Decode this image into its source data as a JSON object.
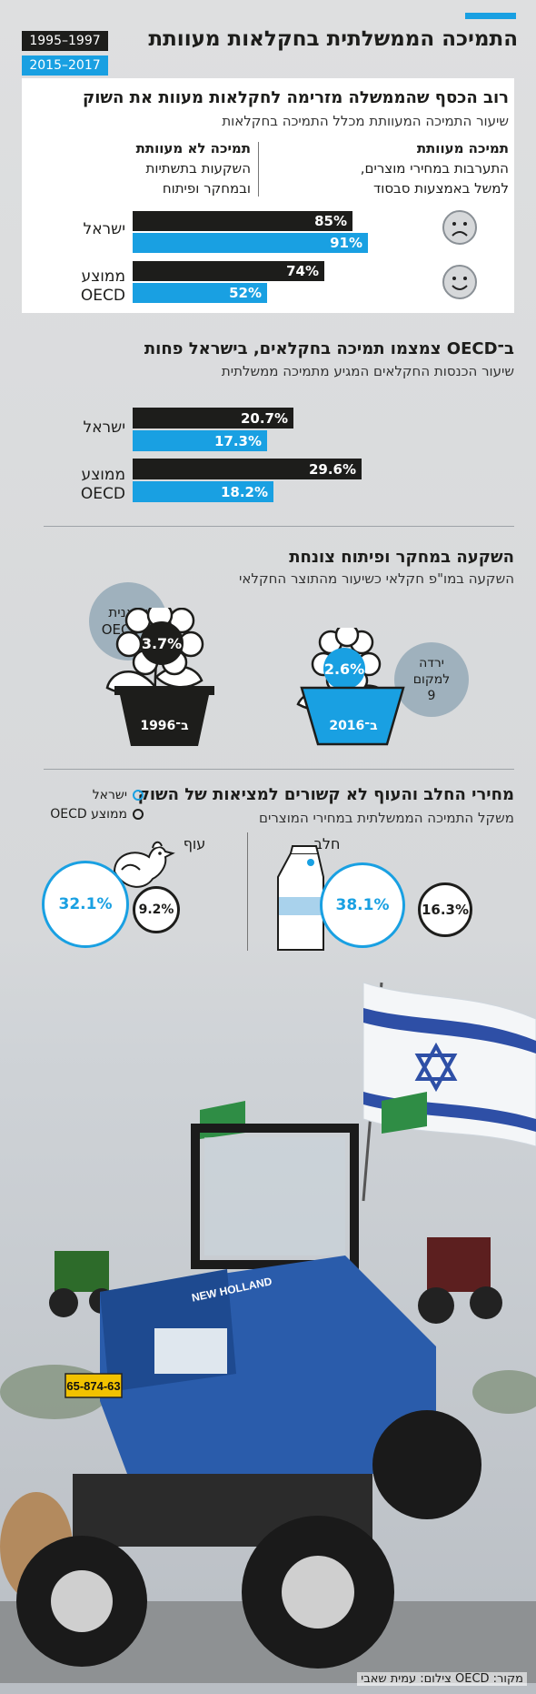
{
  "header": {
    "title": "התמיכה הממשלתית בחקלאות מעוותת",
    "period_a": "1997–1995",
    "period_b": "2017–2015"
  },
  "section1": {
    "title": "רוב הכסף שהממשלה מזרימה לחקלאות מעוות את השוק",
    "subtitle": "שיעור התמיכה המעוותת מכלל התמיכה בחקלאות",
    "def_distorting_title": "תמיכה מעוותת",
    "def_distorting_text1": "התערבות במחירי מוצרים,",
    "def_distorting_text2": "למשל באמצעות סבסוד",
    "def_nondistorting_title": "תמיכה לא מעוותת",
    "def_nondistorting_text1": "השקעות בתשתיות",
    "def_nondistorting_text2": "ובמחקר ופיתוח"
  },
  "section2": {
    "title": "ב־OECD צמצמו תמיכה בחקלאים, בישראל פחות",
    "subtitle": "שיעור הכנסות החקלאים המגיע מתמיכה ממשלתית"
  },
  "section3": {
    "title": "השקעה במחקר ופיתוח צונחת",
    "subtitle": "השקעה במו\"פ חקלאי כשיעור מהתוצר החקלאי",
    "pot1_label": "ב־1996",
    "pot1_value": "3.7%",
    "pot1_bubble_l1": "שיאנית",
    "pot1_bubble_l2": "ה־OECD",
    "pot2_label": "ב־2016",
    "pot2_value": "2.6%",
    "pot2_bubble_l1": "ירדה",
    "pot2_bubble_l2": "למקום",
    "pot2_bubble_l3": "9"
  },
  "section4": {
    "title": "מחירי החלב והעוף לא קשורים למציאות של השוק",
    "subtitle": "משקל התמיכה הממשלתית במחירי המוצרים",
    "legend_israel": "ישראל",
    "legend_oecd": "ממוצע OECD",
    "milk_label": "חלב",
    "milk_israel": "38.1%",
    "milk_oecd": "16.3%",
    "chicken_label": "עוף",
    "chicken_israel": "32.1%",
    "chicken_oecd": "9.2%"
  },
  "photo": {
    "plate": "65-874-63",
    "brand": "NEW HOLLAND"
  },
  "footer": {
    "source": "מקור: OECD  צילום: עמית שאבי"
  },
  "colors": {
    "israel_blue": "#19a0e2",
    "oecd_dark": "#1d1d1b",
    "bubble_gray": "#9fb1bd"
  },
  "chart_data": [
    {
      "type": "bar",
      "title": "רוב הכסף שהממשלה מזרימה לחקלאות מעוות את השוק",
      "subtitle": "שיעור התמיכה המעוותת מכלל התמיכה בחקלאות",
      "categories": [
        "ישראל",
        "ממוצע OECD"
      ],
      "series": [
        {
          "name": "1997–1995",
          "values": [
            85,
            74
          ],
          "labels": [
            "85%",
            "74%"
          ]
        },
        {
          "name": "2017–2015",
          "values": [
            91,
            52
          ],
          "labels": [
            "91%",
            "52%"
          ]
        }
      ],
      "xlim": [
        0,
        100
      ]
    },
    {
      "type": "bar",
      "title": "ב־OECD צמצמו תמיכה בחקלאים, בישראל פחות",
      "subtitle": "שיעור הכנסות החקלאים המגיע מתמיכה ממשלתית",
      "categories": [
        "ישראל",
        "ממוצע OECD"
      ],
      "series": [
        {
          "name": "1997–1995",
          "values": [
            20.7,
            29.6
          ],
          "labels": [
            "20.7%",
            "29.6%"
          ]
        },
        {
          "name": "2017–2015",
          "values": [
            17.3,
            18.2
          ],
          "labels": [
            "17.3%",
            "18.2%"
          ]
        }
      ],
      "xlim": [
        0,
        34
      ]
    },
    {
      "type": "bar",
      "title": "השקעה במחקר ופיתוח צונחת",
      "subtitle": "השקעה במו\"פ חקלאי כשיעור מהתוצר החקלאי",
      "categories": [
        "ב־1996",
        "ב־2016"
      ],
      "values": [
        3.7,
        2.6
      ]
    },
    {
      "type": "bar",
      "title": "מחירי החלב והעוף לא קשורים למציאות של השוק",
      "subtitle": "משקל התמיכה הממשלתית במחירי המוצרים",
      "categories": [
        "חלב",
        "עוף"
      ],
      "series": [
        {
          "name": "ישראל",
          "values": [
            38.1,
            32.1
          ]
        },
        {
          "name": "ממוצע OECD",
          "values": [
            16.3,
            9.2
          ]
        }
      ]
    }
  ]
}
